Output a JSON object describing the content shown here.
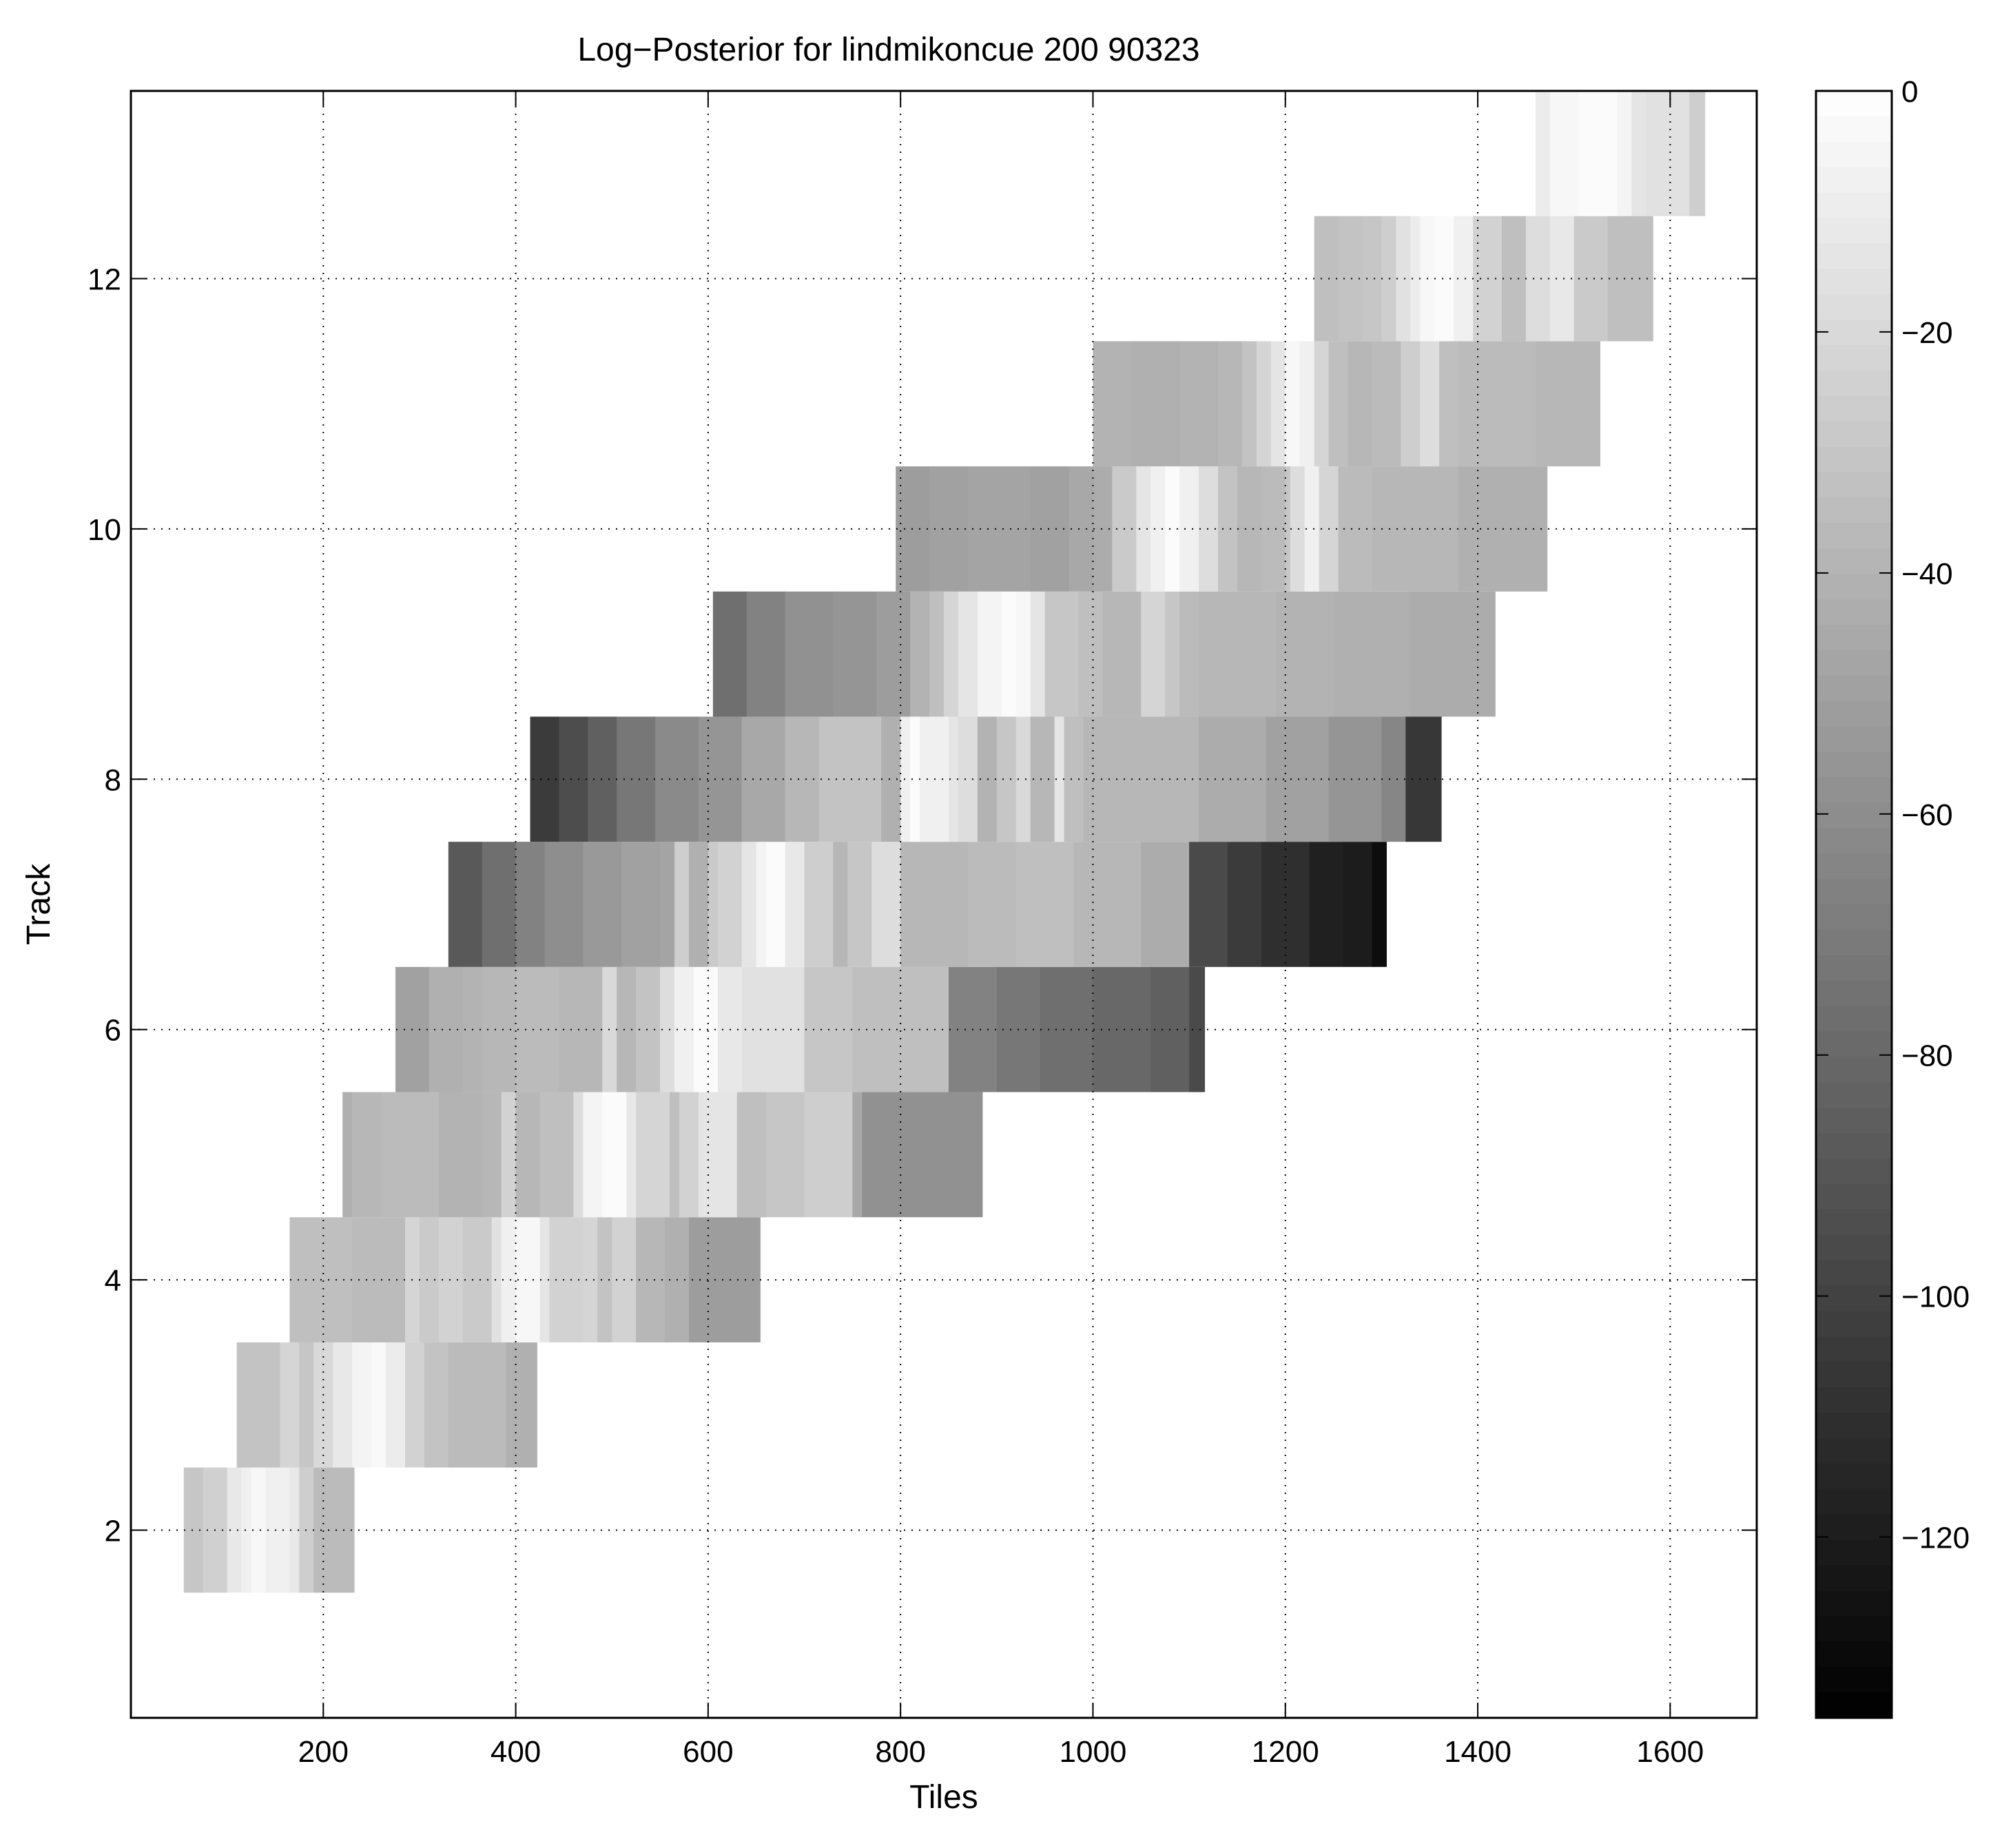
{
  "chart_data": {
    "type": "heatmap",
    "title": "Log−Posterior for lindmikoncue 200 90323",
    "xlabel": "Tiles",
    "ylabel": "Track",
    "xlim": [
      0,
      1690
    ],
    "ylim": [
      0.5,
      13.5
    ],
    "xticks": [
      200,
      400,
      600,
      800,
      1000,
      1200,
      1400,
      1600
    ],
    "xtick_labels": [
      "200",
      "400",
      "600",
      "800",
      "1000",
      "1200",
      "1400",
      "1600"
    ],
    "yticks": [
      2,
      4,
      6,
      8,
      10,
      12
    ],
    "ytick_labels": [
      "2",
      "4",
      "6",
      "8",
      "10",
      "12"
    ],
    "grid": true,
    "colormap": "gray",
    "clim": [
      -135,
      0
    ],
    "colorbar": {
      "ticks": [
        0,
        -20,
        -40,
        -60,
        -80,
        -100,
        -120
      ],
      "tick_labels": [
        "0",
        "−20",
        "−40",
        "−60",
        "−80",
        "−100",
        "−120"
      ]
    },
    "tracks": [
      {
        "track": 2,
        "x_start": 55,
        "x_end": 232,
        "tile_edges": [
          55,
          75,
          100,
          115,
          125,
          140,
          165,
          175,
          190,
          232
        ],
        "values": [
          -30,
          -25,
          -12,
          -8,
          -4,
          -8,
          -12,
          -26,
          -36
        ]
      },
      {
        "track": 3,
        "x_start": 110,
        "x_end": 422,
        "tile_edges": [
          110,
          155,
          175,
          190,
          210,
          230,
          250,
          265,
          285,
          305,
          330,
          390,
          422
        ],
        "values": [
          -32,
          -22,
          -30,
          -20,
          -12,
          -6,
          -3,
          -10,
          -24,
          -32,
          -36,
          -42
        ]
      },
      {
        "track": 4,
        "x_start": 165,
        "x_end": 654,
        "tile_edges": [
          165,
          230,
          285,
          300,
          320,
          345,
          375,
          385,
          400,
          425,
          435,
          470,
          485,
          500,
          525,
          555,
          580,
          654
        ],
        "values": [
          -34,
          -36,
          -22,
          -28,
          -24,
          -28,
          -16,
          -8,
          -4,
          -14,
          -24,
          -22,
          -32,
          -24,
          -38,
          -42,
          -52
        ]
      },
      {
        "track": 5,
        "x_start": 220,
        "x_end": 885,
        "tile_edges": [
          220,
          230,
          260,
          290,
          320,
          365,
          385,
          400,
          425,
          460,
          470,
          490,
          515,
          525,
          560,
          570,
          590,
          630,
          660,
          700,
          750,
          760,
          885
        ],
        "values": [
          -42,
          -38,
          -36,
          -36,
          -40,
          -38,
          -24,
          -38,
          -34,
          -18,
          -6,
          -2,
          -12,
          -22,
          -34,
          -24,
          -14,
          -34,
          -30,
          -26,
          -46,
          -58
        ]
      },
      {
        "track": 6,
        "x_start": 275,
        "x_end": 1116,
        "tile_edges": [
          275,
          310,
          345,
          365,
          400,
          445,
          490,
          505,
          525,
          550,
          565,
          585,
          610,
          635,
          655,
          700,
          750,
          770,
          810,
          850,
          900,
          945,
          1000,
          1060,
          1100,
          1116
        ],
        "values": [
          -50,
          -42,
          -40,
          -38,
          -36,
          -38,
          -20,
          -38,
          -32,
          -18,
          -8,
          -2,
          -12,
          -16,
          -16,
          -30,
          -34,
          -34,
          -34,
          -66,
          -72,
          -76,
          -80,
          -84,
          -96
        ]
      },
      {
        "track": 7,
        "x_start": 330,
        "x_end": 1305,
        "tile_edges": [
          330,
          365,
          400,
          430,
          470,
          510,
          550,
          565,
          580,
          600,
          610,
          635,
          650,
          660,
          680,
          700,
          730,
          745,
          770,
          800,
          850,
          870,
          920,
          980,
          1050,
          1100,
          1140,
          1175,
          1225,
          1260,
          1290,
          1305
        ],
        "values": [
          -88,
          -76,
          -66,
          -60,
          -54,
          -50,
          -48,
          -26,
          -42,
          -28,
          -24,
          -14,
          -6,
          -2,
          -12,
          -26,
          -38,
          -30,
          -18,
          -38,
          -38,
          -36,
          -34,
          -38,
          -44,
          -96,
          -104,
          -110,
          -118,
          -120,
          -128
        ]
      },
      {
        "track": 8,
        "x_start": 415,
        "x_end": 1362,
        "tile_edges": [
          415,
          445,
          475,
          505,
          545,
          590,
          635,
          680,
          715,
          780,
          800,
          810,
          820,
          850,
          860,
          880,
          900,
          920,
          935,
          960,
          970,
          990,
          1050,
          1110,
          1180,
          1245,
          1300,
          1325,
          1362
        ],
        "values": [
          -104,
          -94,
          -84,
          -72,
          -62,
          -56,
          -46,
          -38,
          -32,
          -42,
          -8,
          -2,
          -8,
          -14,
          -18,
          -40,
          -30,
          -20,
          -38,
          -14,
          -34,
          -38,
          -38,
          -44,
          -50,
          -56,
          -64,
          -106
        ]
      },
      {
        "track": 9,
        "x_start": 605,
        "x_end": 1418,
        "tile_edges": [
          605,
          640,
          680,
          730,
          775,
          810,
          830,
          845,
          860,
          880,
          905,
          920,
          935,
          950,
          985,
          1010,
          1050,
          1075,
          1090,
          1110,
          1190,
          1250,
          1330,
          1418
        ],
        "values": [
          -76,
          -66,
          -58,
          -56,
          -52,
          -40,
          -34,
          -22,
          -14,
          -6,
          -2,
          -4,
          -14,
          -30,
          -34,
          -38,
          -22,
          -30,
          -36,
          -38,
          -40,
          -42,
          -44
        ]
      },
      {
        "track": 10,
        "x_start": 795,
        "x_end": 1472,
        "tile_edges": [
          795,
          830,
          870,
          935,
          975,
          1000,
          1020,
          1045,
          1060,
          1075,
          1090,
          1110,
          1130,
          1150,
          1175,
          1200,
          1205,
          1220,
          1235,
          1255,
          1290,
          1380,
          1472
        ],
        "values": [
          -52,
          -50,
          -48,
          -50,
          -46,
          -44,
          -28,
          -14,
          -8,
          -2,
          -8,
          -18,
          -32,
          -38,
          -36,
          -30,
          -18,
          -8,
          -22,
          -36,
          -38,
          -42
        ]
      },
      {
        "track": 11,
        "x_start": 1000,
        "x_end": 1527,
        "tile_edges": [
          1000,
          1040,
          1090,
          1130,
          1155,
          1170,
          1185,
          1200,
          1215,
          1230,
          1245,
          1265,
          1290,
          1320,
          1340,
          1360,
          1380,
          1410,
          1460,
          1527
        ],
        "values": [
          -40,
          -42,
          -40,
          -38,
          -32,
          -22,
          -14,
          -4,
          -8,
          -22,
          -34,
          -38,
          -36,
          -26,
          -18,
          -34,
          -36,
          -36,
          -38
        ]
      },
      {
        "track": 12,
        "x_start": 1230,
        "x_end": 1582,
        "tile_edges": [
          1230,
          1255,
          1280,
          1300,
          1315,
          1330,
          1340,
          1355,
          1375,
          1395,
          1425,
          1450,
          1475,
          1500,
          1535,
          1582
        ],
        "values": [
          -34,
          -32,
          -30,
          -26,
          -16,
          -10,
          -4,
          -2,
          -8,
          -24,
          -34,
          -18,
          -12,
          -28,
          -34
        ]
      },
      {
        "track": 13,
        "x_start": 1460,
        "x_end": 1636,
        "tile_edges": [
          1460,
          1475,
          1485,
          1505,
          1525,
          1545,
          1560,
          1575,
          1605,
          1620,
          1636
        ],
        "values": [
          -10,
          -4,
          -4,
          -2,
          -2,
          -6,
          -14,
          -16,
          -16,
          -26
        ]
      }
    ]
  }
}
